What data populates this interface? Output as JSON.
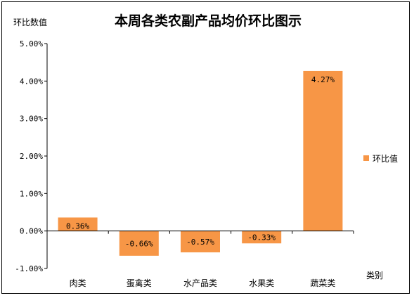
{
  "chart_data": {
    "type": "bar",
    "title": "本周各类农副产品均价环比图示",
    "ylabel": "环比数值",
    "xlabel": "类别",
    "categories": [
      "肉类",
      "蛋禽类",
      "水产品类",
      "水果类",
      "蔬菜类"
    ],
    "series": [
      {
        "name": "环比值",
        "values": [
          0.36,
          -0.66,
          -0.57,
          -0.33,
          4.27
        ],
        "labels": [
          "0.36%",
          "-0.66%",
          "-0.57%",
          "-0.33%",
          "4.27%"
        ],
        "color": "#F79646"
      }
    ],
    "ylim": [
      -1.0,
      5.0
    ],
    "yticks": [
      "5.00%",
      "4.00%",
      "3.00%",
      "2.00%",
      "1.00%",
      "0.00%",
      "-1.00%"
    ],
    "ytick_values": [
      5,
      4,
      3,
      2,
      1,
      0,
      -1
    ],
    "grid": false,
    "legend": "right"
  }
}
